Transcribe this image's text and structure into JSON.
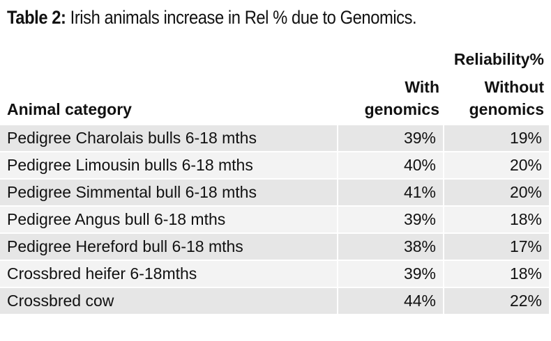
{
  "title": {
    "label": "Table 2:",
    "text": " Irish animals increase in Rel % due to Genomics."
  },
  "header": {
    "group": "Reliability%",
    "col1": "Animal category",
    "col2_line1": "With",
    "col2_line2": "genomics",
    "col3_line1": "Without",
    "col3_line2": "genomics"
  },
  "rows": [
    {
      "category": "Pedigree Charolais bulls 6-18 mths",
      "with": "39%",
      "without": "19%"
    },
    {
      "category": "Pedigree Limousin bulls 6-18 mths",
      "with": "40%",
      "without": "20%"
    },
    {
      "category": "Pedigree Simmental bull 6-18 mths",
      "with": "41%",
      "without": "20%"
    },
    {
      "category": "Pedigree Angus bull 6-18 mths",
      "with": "39%",
      "without": "18%"
    },
    {
      "category": "Pedigree Hereford bull 6-18 mths",
      "with": "38%",
      "without": "17%"
    },
    {
      "category": "Crossbred heifer 6-18mths",
      "with": "39%",
      "without": "18%"
    },
    {
      "category": "Crossbred cow",
      "with": "44%",
      "without": "22%"
    }
  ]
}
